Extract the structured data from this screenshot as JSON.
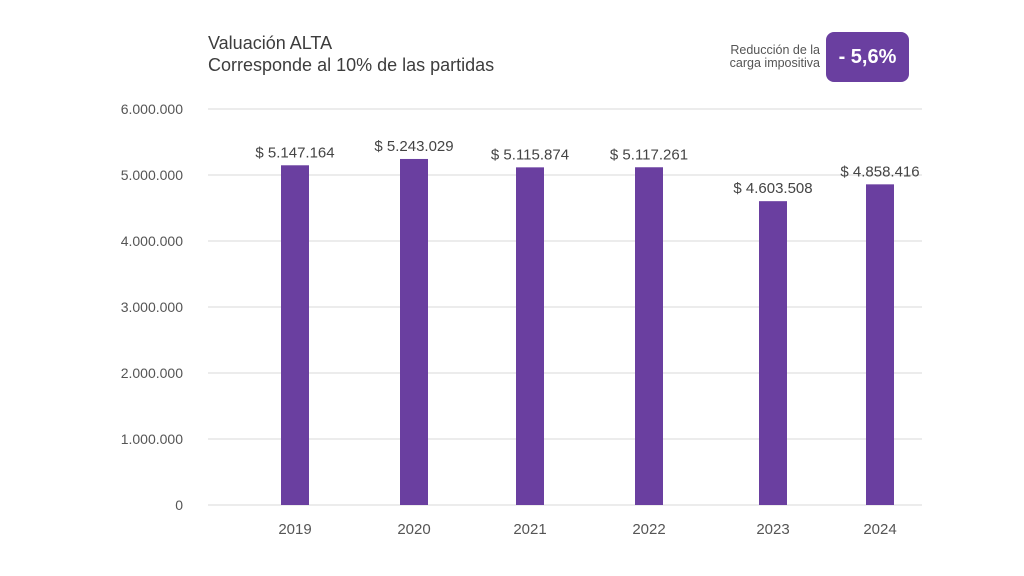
{
  "title": {
    "line1": "Valuación ALTA",
    "line2": "Corresponde al 10% de las partidas"
  },
  "badge": {
    "label_line1": "Reducción de la",
    "label_line2": "carga impositiva",
    "value": "- 5,6%",
    "color": "#6a3fa0"
  },
  "colors": {
    "bar": "#6a3fa0",
    "grid": "#d9d9d9",
    "text": "#555555"
  },
  "chart_data": {
    "type": "bar",
    "title": "Valuación ALTA",
    "subtitle": "Corresponde al 10% de las partidas",
    "categories": [
      "2019",
      "2020",
      "2021",
      "2022",
      "2023",
      "2024"
    ],
    "values": [
      5147164,
      5243029,
      5115874,
      5117261,
      4603508,
      4858416
    ],
    "data_labels": [
      "$ 5.147.164",
      "$ 5.243.029",
      "$ 5.115.874",
      "$ 5.117.261",
      "$ 4.603.508",
      "$ 4.858.416"
    ],
    "y_ticks": [
      0,
      1000000,
      2000000,
      3000000,
      4000000,
      5000000,
      6000000
    ],
    "y_tick_labels": [
      "0",
      "1.000.000",
      "2.000.000",
      "3.000.000",
      "4.000.000",
      "5.000.000",
      "6.000.000"
    ],
    "ylim": [
      0,
      6000000
    ],
    "xlabel": "",
    "ylabel": "",
    "grid": true,
    "legend": "none"
  }
}
